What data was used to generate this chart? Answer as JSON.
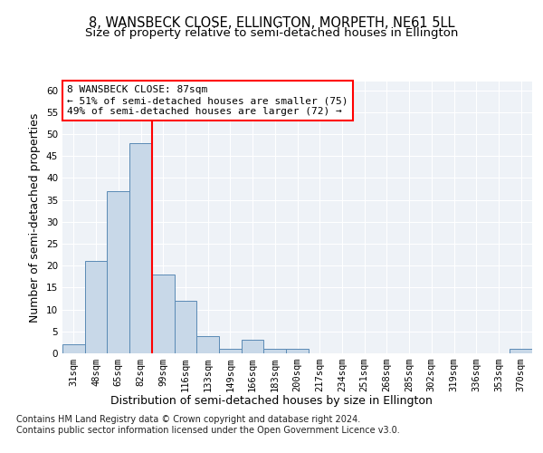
{
  "title": "8, WANSBECK CLOSE, ELLINGTON, MORPETH, NE61 5LL",
  "subtitle": "Size of property relative to semi-detached houses in Ellington",
  "xlabel": "Distribution of semi-detached houses by size in Ellington",
  "ylabel": "Number of semi-detached properties",
  "categories": [
    "31sqm",
    "48sqm",
    "65sqm",
    "82sqm",
    "99sqm",
    "116sqm",
    "133sqm",
    "149sqm",
    "166sqm",
    "183sqm",
    "200sqm",
    "217sqm",
    "234sqm",
    "251sqm",
    "268sqm",
    "285sqm",
    "302sqm",
    "319sqm",
    "336sqm",
    "353sqm",
    "370sqm"
  ],
  "values": [
    2,
    21,
    37,
    48,
    18,
    12,
    4,
    1,
    3,
    1,
    1,
    0,
    0,
    0,
    0,
    0,
    0,
    0,
    0,
    0,
    1
  ],
  "bar_color": "#c8d8e8",
  "bar_edge_color": "#5a8ab5",
  "red_line_index": 3.5,
  "annotation_line1": "8 WANSBECK CLOSE: 87sqm",
  "annotation_line2": "← 51% of semi-detached houses are smaller (75)",
  "annotation_line3": "49% of semi-detached houses are larger (72) →",
  "footer1": "Contains HM Land Registry data © Crown copyright and database right 2024.",
  "footer2": "Contains public sector information licensed under the Open Government Licence v3.0.",
  "ylim": [
    0,
    62
  ],
  "yticks": [
    0,
    5,
    10,
    15,
    20,
    25,
    30,
    35,
    40,
    45,
    50,
    55,
    60
  ],
  "background_color": "#eef2f7",
  "grid_color": "#ffffff",
  "title_fontsize": 10.5,
  "subtitle_fontsize": 9.5,
  "axis_label_fontsize": 9,
  "tick_fontsize": 7.5,
  "annotation_fontsize": 8,
  "footer_fontsize": 7
}
